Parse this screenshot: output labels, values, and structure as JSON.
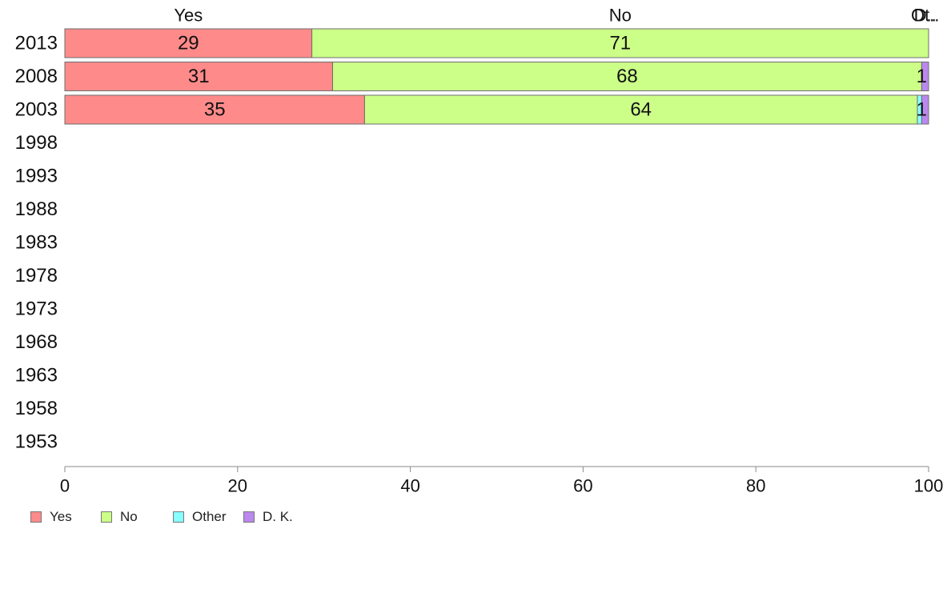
{
  "chart_data": {
    "type": "bar",
    "orientation": "horizontal",
    "stacked": true,
    "categories": [
      "2013",
      "2008",
      "2003",
      "1998",
      "1993",
      "1988",
      "1983",
      "1978",
      "1973",
      "1968",
      "1963",
      "1958",
      "1953"
    ],
    "series": [
      {
        "name": "Yes",
        "color": "#ff8a8a",
        "values": [
          28.6,
          31.0,
          34.7,
          null,
          null,
          null,
          null,
          null,
          null,
          null,
          null,
          null,
          null
        ],
        "labels": [
          "29",
          "31",
          "35",
          "",
          "",
          "",
          "",
          "",
          "",
          "",
          "",
          "",
          ""
        ]
      },
      {
        "name": "No",
        "color": "#ccff88",
        "values": [
          71.4,
          68.2,
          64.0,
          null,
          null,
          null,
          null,
          null,
          null,
          null,
          null,
          null,
          null
        ],
        "labels": [
          "71",
          "68",
          "64",
          "",
          "",
          "",
          "",
          "",
          "",
          "",
          "",
          "",
          ""
        ]
      },
      {
        "name": "Other",
        "color": "#88ffff",
        "values": [
          0.0,
          0.0,
          0.5,
          null,
          null,
          null,
          null,
          null,
          null,
          null,
          null,
          null,
          null
        ],
        "labels": [
          "",
          "",
          "",
          "",
          "",
          "",
          "",
          "",
          "",
          "",
          "",
          "",
          ""
        ]
      },
      {
        "name": "D. K.",
        "color": "#bb88ee",
        "values": [
          0.0,
          0.8,
          0.8,
          null,
          null,
          null,
          null,
          null,
          null,
          null,
          null,
          null,
          null
        ],
        "labels": [
          "",
          "1",
          "1",
          "",
          "",
          "",
          "",
          "",
          "",
          "",
          "",
          "",
          ""
        ]
      }
    ],
    "top_labels": [
      {
        "text": "Yes",
        "x": 14.3
      },
      {
        "text": "No",
        "x": 64.3
      },
      {
        "text": "Ot..",
        "x": 99.6
      },
      {
        "text": "D..",
        "x": 99.6
      }
    ],
    "xlim": [
      0,
      100
    ],
    "xticks": [
      "0",
      "20",
      "40",
      "60",
      "80",
      "100"
    ],
    "title": "",
    "xlabel": "",
    "ylabel": "",
    "grid": false,
    "legend_position": "bottom-left"
  }
}
